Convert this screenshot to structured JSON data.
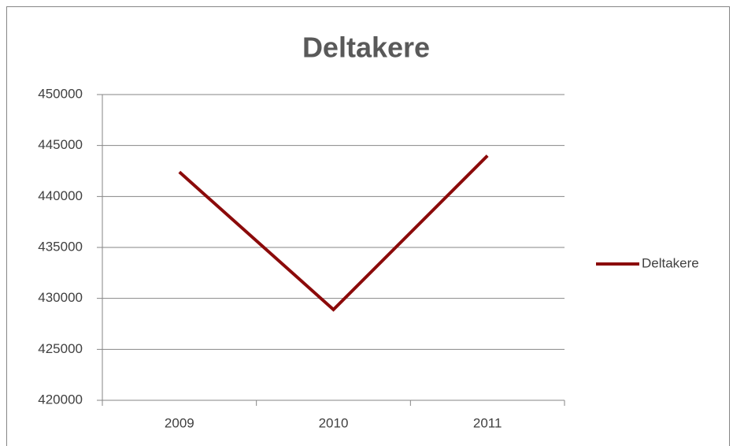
{
  "chart_data": {
    "type": "line",
    "title": "Deltakere",
    "categories": [
      "2009",
      "2010",
      "2011"
    ],
    "series": [
      {
        "name": "Deltakere",
        "color": "#8b0a0a",
        "values": [
          442400,
          428900,
          444000
        ]
      }
    ],
    "ylim": [
      420000,
      450000
    ],
    "yticks": [
      420000,
      425000,
      430000,
      435000,
      440000,
      445000,
      450000
    ],
    "grid": true,
    "legend": "right"
  }
}
